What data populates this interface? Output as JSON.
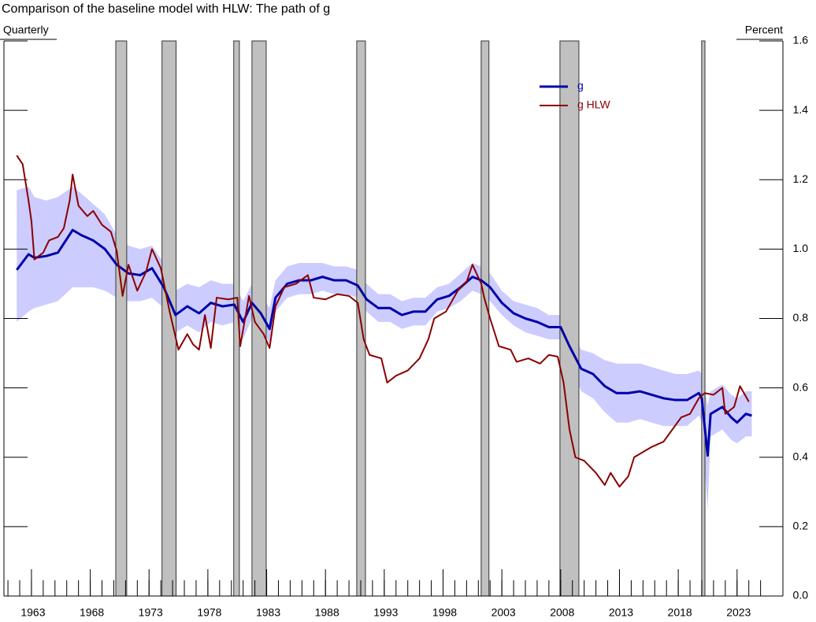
{
  "chart_data": {
    "type": "line",
    "title": "Comparison of the baseline model with HLW: The path of g",
    "x_label": "Quarterly",
    "y_label": "Percent",
    "xlim": [
      1960.66,
      2026.9
    ],
    "xticks": [
      1963,
      1968,
      1973,
      1978,
      1983,
      1988,
      1993,
      1998,
      2003,
      2008,
      2013,
      2018,
      2023
    ],
    "xminor_ticks": [
      1961,
      1962,
      1963,
      1964,
      1965,
      1966,
      1967,
      1968,
      1969,
      1970,
      1971,
      1972,
      1973,
      1974,
      1975,
      1976,
      1977,
      1978,
      1979,
      1980,
      1981,
      1982,
      1983,
      1984,
      1985,
      1986,
      1987,
      1988,
      1989,
      1990,
      1991,
      1992,
      1993,
      1994,
      1995,
      1996,
      1997,
      1998,
      1999,
      2000,
      2001,
      2002,
      2003,
      2004,
      2005,
      2006,
      2007,
      2008,
      2009,
      2010,
      2011,
      2012,
      2013,
      2014,
      2015,
      2016,
      2017,
      2018,
      2019,
      2020,
      2021,
      2022,
      2023,
      2024,
      2025
    ],
    "ylim": [
      0,
      1.6
    ],
    "yticks": [
      {
        "value": 0,
        "label": "0.0"
      },
      0.2,
      0.4,
      0.6,
      0.8,
      {
        "value": 1,
        "label": "1.0"
      },
      1.2,
      1.4,
      1.6
    ],
    "legend": "upper right",
    "recessions": [
      [
        1970.17,
        1971.1
      ],
      [
        1974.1,
        1975.3
      ],
      [
        1980.2,
        1980.68
      ],
      [
        1981.75,
        1982.96
      ],
      [
        1990.66,
        1991.4
      ],
      [
        2001.24,
        2001.9
      ],
      [
        2007.94,
        2009.55
      ],
      [
        2019.99,
        2020.27
      ]
    ],
    "recession_color": "#c0c0c0",
    "band": {
      "color": "#ccccff",
      "x": [
        1961.75,
        1962.75,
        1963.25,
        1964.25,
        1965.25,
        1966.5,
        1967.25,
        1968.25,
        1969.25,
        1970.25,
        1971.25,
        1972.25,
        1973.25,
        1974.25,
        1975.25,
        1976.25,
        1977.25,
        1978.25,
        1979.25,
        1980.25,
        1981,
        1981.75,
        1982.5,
        1983.25,
        1983.75,
        1984.75,
        1985.75,
        1986.75,
        1987.75,
        1988.75,
        1989.75,
        1990.75,
        1991.5,
        1992.5,
        1993.5,
        1994.5,
        1995.5,
        1996.5,
        1997.5,
        1998.5,
        1999.5,
        2000.5,
        2001.25,
        2002,
        2003,
        2004,
        2005,
        2006,
        2007,
        2008,
        2008.75,
        2009.75,
        2010.75,
        2011.75,
        2012.75,
        2013.75,
        2014.75,
        2015.75,
        2016.75,
        2017.75,
        2018.75,
        2019.75,
        2020,
        2020.5,
        2020.75,
        2021.75,
        2022.5,
        2023,
        2023.75,
        2024.25
      ],
      "upper": [
        1.17,
        1.18,
        1.15,
        1.14,
        1.15,
        1.18,
        1.16,
        1.13,
        1.1,
        1.04,
        1.01,
        1.0,
        1.01,
        0.96,
        0.88,
        0.9,
        0.89,
        0.91,
        0.9,
        0.9,
        0.85,
        0.9,
        0.87,
        0.83,
        0.91,
        0.95,
        0.96,
        0.96,
        0.96,
        0.95,
        0.95,
        0.94,
        0.9,
        0.87,
        0.87,
        0.85,
        0.86,
        0.86,
        0.89,
        0.9,
        0.93,
        0.96,
        0.95,
        0.93,
        0.88,
        0.85,
        0.84,
        0.83,
        0.81,
        0.81,
        0.77,
        0.71,
        0.7,
        0.68,
        0.67,
        0.67,
        0.67,
        0.66,
        0.65,
        0.64,
        0.64,
        0.65,
        0.64,
        0.55,
        0.59,
        0.61,
        0.58,
        0.57,
        0.59,
        0.59
      ],
      "lower": [
        0.79,
        0.82,
        0.83,
        0.84,
        0.85,
        0.89,
        0.89,
        0.89,
        0.88,
        0.86,
        0.85,
        0.85,
        0.86,
        0.83,
        0.76,
        0.78,
        0.76,
        0.79,
        0.78,
        0.79,
        0.74,
        0.8,
        0.77,
        0.73,
        0.82,
        0.86,
        0.87,
        0.87,
        0.88,
        0.87,
        0.87,
        0.86,
        0.82,
        0.79,
        0.79,
        0.77,
        0.78,
        0.78,
        0.82,
        0.83,
        0.85,
        0.88,
        0.87,
        0.85,
        0.81,
        0.78,
        0.76,
        0.75,
        0.74,
        0.74,
        0.67,
        0.59,
        0.57,
        0.53,
        0.5,
        0.5,
        0.51,
        0.5,
        0.49,
        0.49,
        0.49,
        0.52,
        0.5,
        0.25,
        0.46,
        0.48,
        0.45,
        0.44,
        0.46,
        0.46
      ]
    },
    "series": [
      {
        "name": "g",
        "color": "#0000aa",
        "width": 3,
        "x": [
          1961.75,
          1962.75,
          1963.25,
          1964.25,
          1965.25,
          1966.5,
          1967.25,
          1968.25,
          1969.25,
          1970.25,
          1971.25,
          1972.25,
          1973.25,
          1974.25,
          1975.25,
          1976.25,
          1977.25,
          1978.25,
          1979.25,
          1980.25,
          1981,
          1981.75,
          1982.5,
          1983.25,
          1983.75,
          1984.75,
          1985.75,
          1986.75,
          1987.75,
          1988.75,
          1989.75,
          1990.75,
          1991.5,
          1992.5,
          1993.5,
          1994.5,
          1995.5,
          1996.5,
          1997.5,
          1998.5,
          1999.5,
          2000.5,
          2001.25,
          2002,
          2003,
          2004,
          2005,
          2006,
          2007,
          2008,
          2008.75,
          2009.75,
          2010.75,
          2011.75,
          2012.75,
          2013.75,
          2014.75,
          2015.75,
          2016.75,
          2017.75,
          2018.75,
          2019.75,
          2020,
          2020.5,
          2020.75,
          2021.75,
          2022.5,
          2023,
          2023.75,
          2024.25
        ],
        "values": [
          0.94,
          0.985,
          0.975,
          0.98,
          0.99,
          1.055,
          1.04,
          1.025,
          1.0,
          0.955,
          0.93,
          0.925,
          0.945,
          0.89,
          0.81,
          0.835,
          0.815,
          0.845,
          0.835,
          0.84,
          0.79,
          0.845,
          0.815,
          0.77,
          0.86,
          0.9,
          0.91,
          0.91,
          0.92,
          0.91,
          0.91,
          0.895,
          0.855,
          0.83,
          0.83,
          0.81,
          0.82,
          0.82,
          0.855,
          0.865,
          0.89,
          0.92,
          0.91,
          0.89,
          0.845,
          0.815,
          0.8,
          0.79,
          0.775,
          0.775,
          0.72,
          0.655,
          0.64,
          0.605,
          0.585,
          0.585,
          0.59,
          0.58,
          0.57,
          0.565,
          0.565,
          0.585,
          0.57,
          0.405,
          0.525,
          0.545,
          0.515,
          0.5,
          0.525,
          0.52
        ]
      },
      {
        "name": "g HLW",
        "color": "#8b0000",
        "width": 2,
        "x": [
          1961.75,
          1962.25,
          1962.75,
          1963,
          1963.25,
          1964,
          1964.5,
          1965.25,
          1965.75,
          1966.25,
          1966.5,
          1967,
          1967.75,
          1968.25,
          1969,
          1969.75,
          1970.25,
          1970.75,
          1971.25,
          1972,
          1972.75,
          1973.25,
          1974,
          1974.75,
          1975.5,
          1976.25,
          1976.75,
          1977.25,
          1977.75,
          1978.25,
          1978.75,
          1979.75,
          1980.5,
          1980.75,
          1981.5,
          1982,
          1982.75,
          1983.25,
          1983.75,
          1984.5,
          1985.5,
          1986.5,
          1987,
          1988,
          1989,
          1990,
          1990.75,
          1991.25,
          1991.75,
          1992.75,
          1993.25,
          1994,
          1995,
          1996,
          1996.75,
          1997.25,
          1998.25,
          1999.25,
          2000,
          2000.5,
          2001.25,
          2001.5,
          2002,
          2002.75,
          2003.75,
          2004.25,
          2005.25,
          2006.25,
          2007,
          2007.75,
          2008.25,
          2008.75,
          2009.25,
          2010,
          2011,
          2011.75,
          2012.25,
          2013,
          2013.75,
          2014.25,
          2015,
          2015.75,
          2016.75,
          2017.5,
          2018.25,
          2019,
          2019.75,
          2020.25,
          2021,
          2021.75,
          2022,
          2022.75,
          2023.25,
          2024
        ],
        "values": [
          1.27,
          1.245,
          1.14,
          1.08,
          0.97,
          0.99,
          1.025,
          1.035,
          1.06,
          1.14,
          1.215,
          1.125,
          1.095,
          1.11,
          1.07,
          1.05,
          0.995,
          0.865,
          0.955,
          0.88,
          0.935,
          1.0,
          0.945,
          0.82,
          0.71,
          0.755,
          0.725,
          0.71,
          0.81,
          0.715,
          0.86,
          0.855,
          0.86,
          0.72,
          0.865,
          0.79,
          0.755,
          0.715,
          0.835,
          0.89,
          0.9,
          0.925,
          0.86,
          0.855,
          0.87,
          0.865,
          0.845,
          0.74,
          0.695,
          0.685,
          0.615,
          0.635,
          0.65,
          0.685,
          0.74,
          0.8,
          0.82,
          0.88,
          0.905,
          0.955,
          0.9,
          0.86,
          0.8,
          0.72,
          0.71,
          0.675,
          0.685,
          0.67,
          0.695,
          0.69,
          0.615,
          0.48,
          0.4,
          0.39,
          0.355,
          0.32,
          0.355,
          0.315,
          0.345,
          0.4,
          0.415,
          0.43,
          0.445,
          0.48,
          0.515,
          0.525,
          0.57,
          0.585,
          0.58,
          0.6,
          0.525,
          0.545,
          0.605,
          0.56
        ]
      }
    ]
  }
}
